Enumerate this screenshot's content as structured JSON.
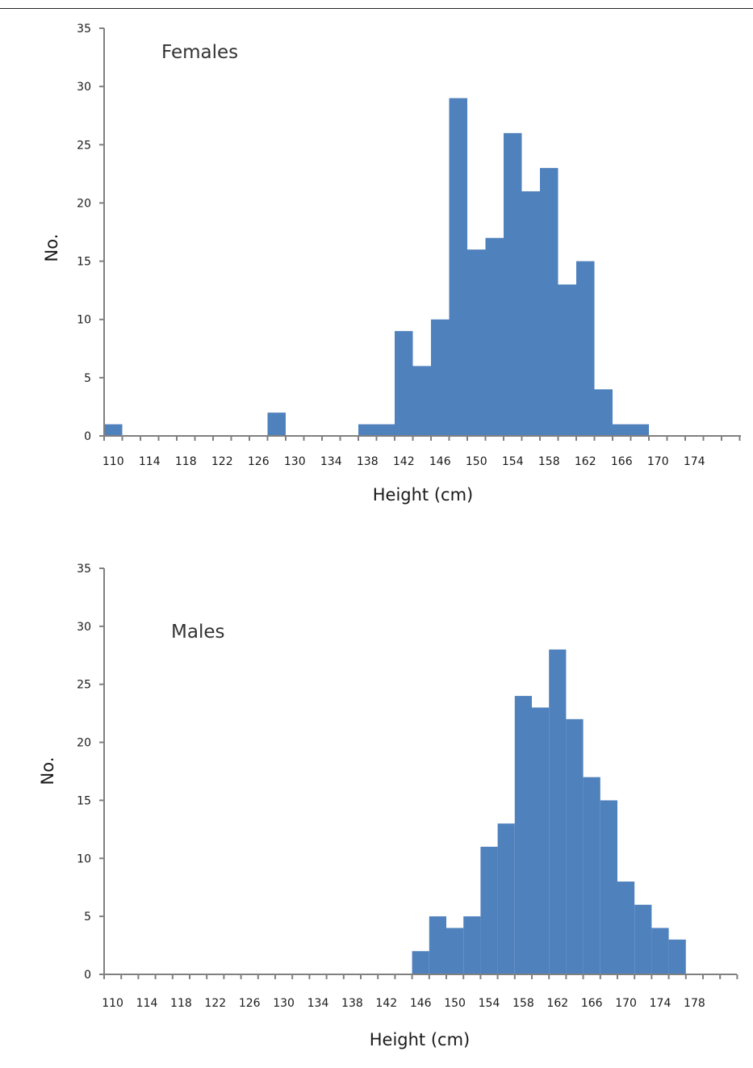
{
  "chart_data": [
    {
      "type": "bar",
      "title": "Females",
      "xlabel": "Height (cm)",
      "ylabel": "No.",
      "ylim": [
        0,
        35
      ],
      "yticks": [
        "0",
        "5",
        "10",
        "15",
        "20",
        "25",
        "30",
        "35"
      ],
      "xticks": [
        "110",
        "114",
        "118",
        "122",
        "126",
        "130",
        "134",
        "138",
        "142",
        "146",
        "150",
        "154",
        "158",
        "162",
        "166",
        "170",
        "174"
      ],
      "bar_color": "#4f81bd",
      "x": [
        110,
        128,
        138,
        140,
        142,
        144,
        146,
        148,
        150,
        152,
        154,
        156,
        158,
        160,
        162,
        164,
        166,
        168
      ],
      "values": [
        1,
        2,
        1,
        1,
        9,
        6,
        10,
        29,
        16,
        17,
        26,
        21,
        23,
        13,
        15,
        4,
        1,
        1
      ]
    },
    {
      "type": "bar",
      "title": "Males",
      "xlabel": "Height (cm)",
      "ylabel": "No.",
      "ylim": [
        0,
        35
      ],
      "yticks": [
        "0",
        "5",
        "10",
        "15",
        "20",
        "25",
        "30",
        "35"
      ],
      "xticks": [
        "110",
        "114",
        "118",
        "122",
        "126",
        "130",
        "134",
        "138",
        "142",
        "146",
        "150",
        "154",
        "158",
        "162",
        "166",
        "170",
        "174",
        "178"
      ],
      "bar_color": "#4f81bd",
      "x": [
        146,
        148,
        150,
        152,
        154,
        156,
        158,
        160,
        162,
        164,
        166,
        168,
        170,
        172,
        174,
        176
      ],
      "values": [
        2,
        5,
        4,
        5,
        11,
        13,
        24,
        23,
        28,
        22,
        17,
        15,
        8,
        6,
        4,
        3
      ]
    }
  ]
}
